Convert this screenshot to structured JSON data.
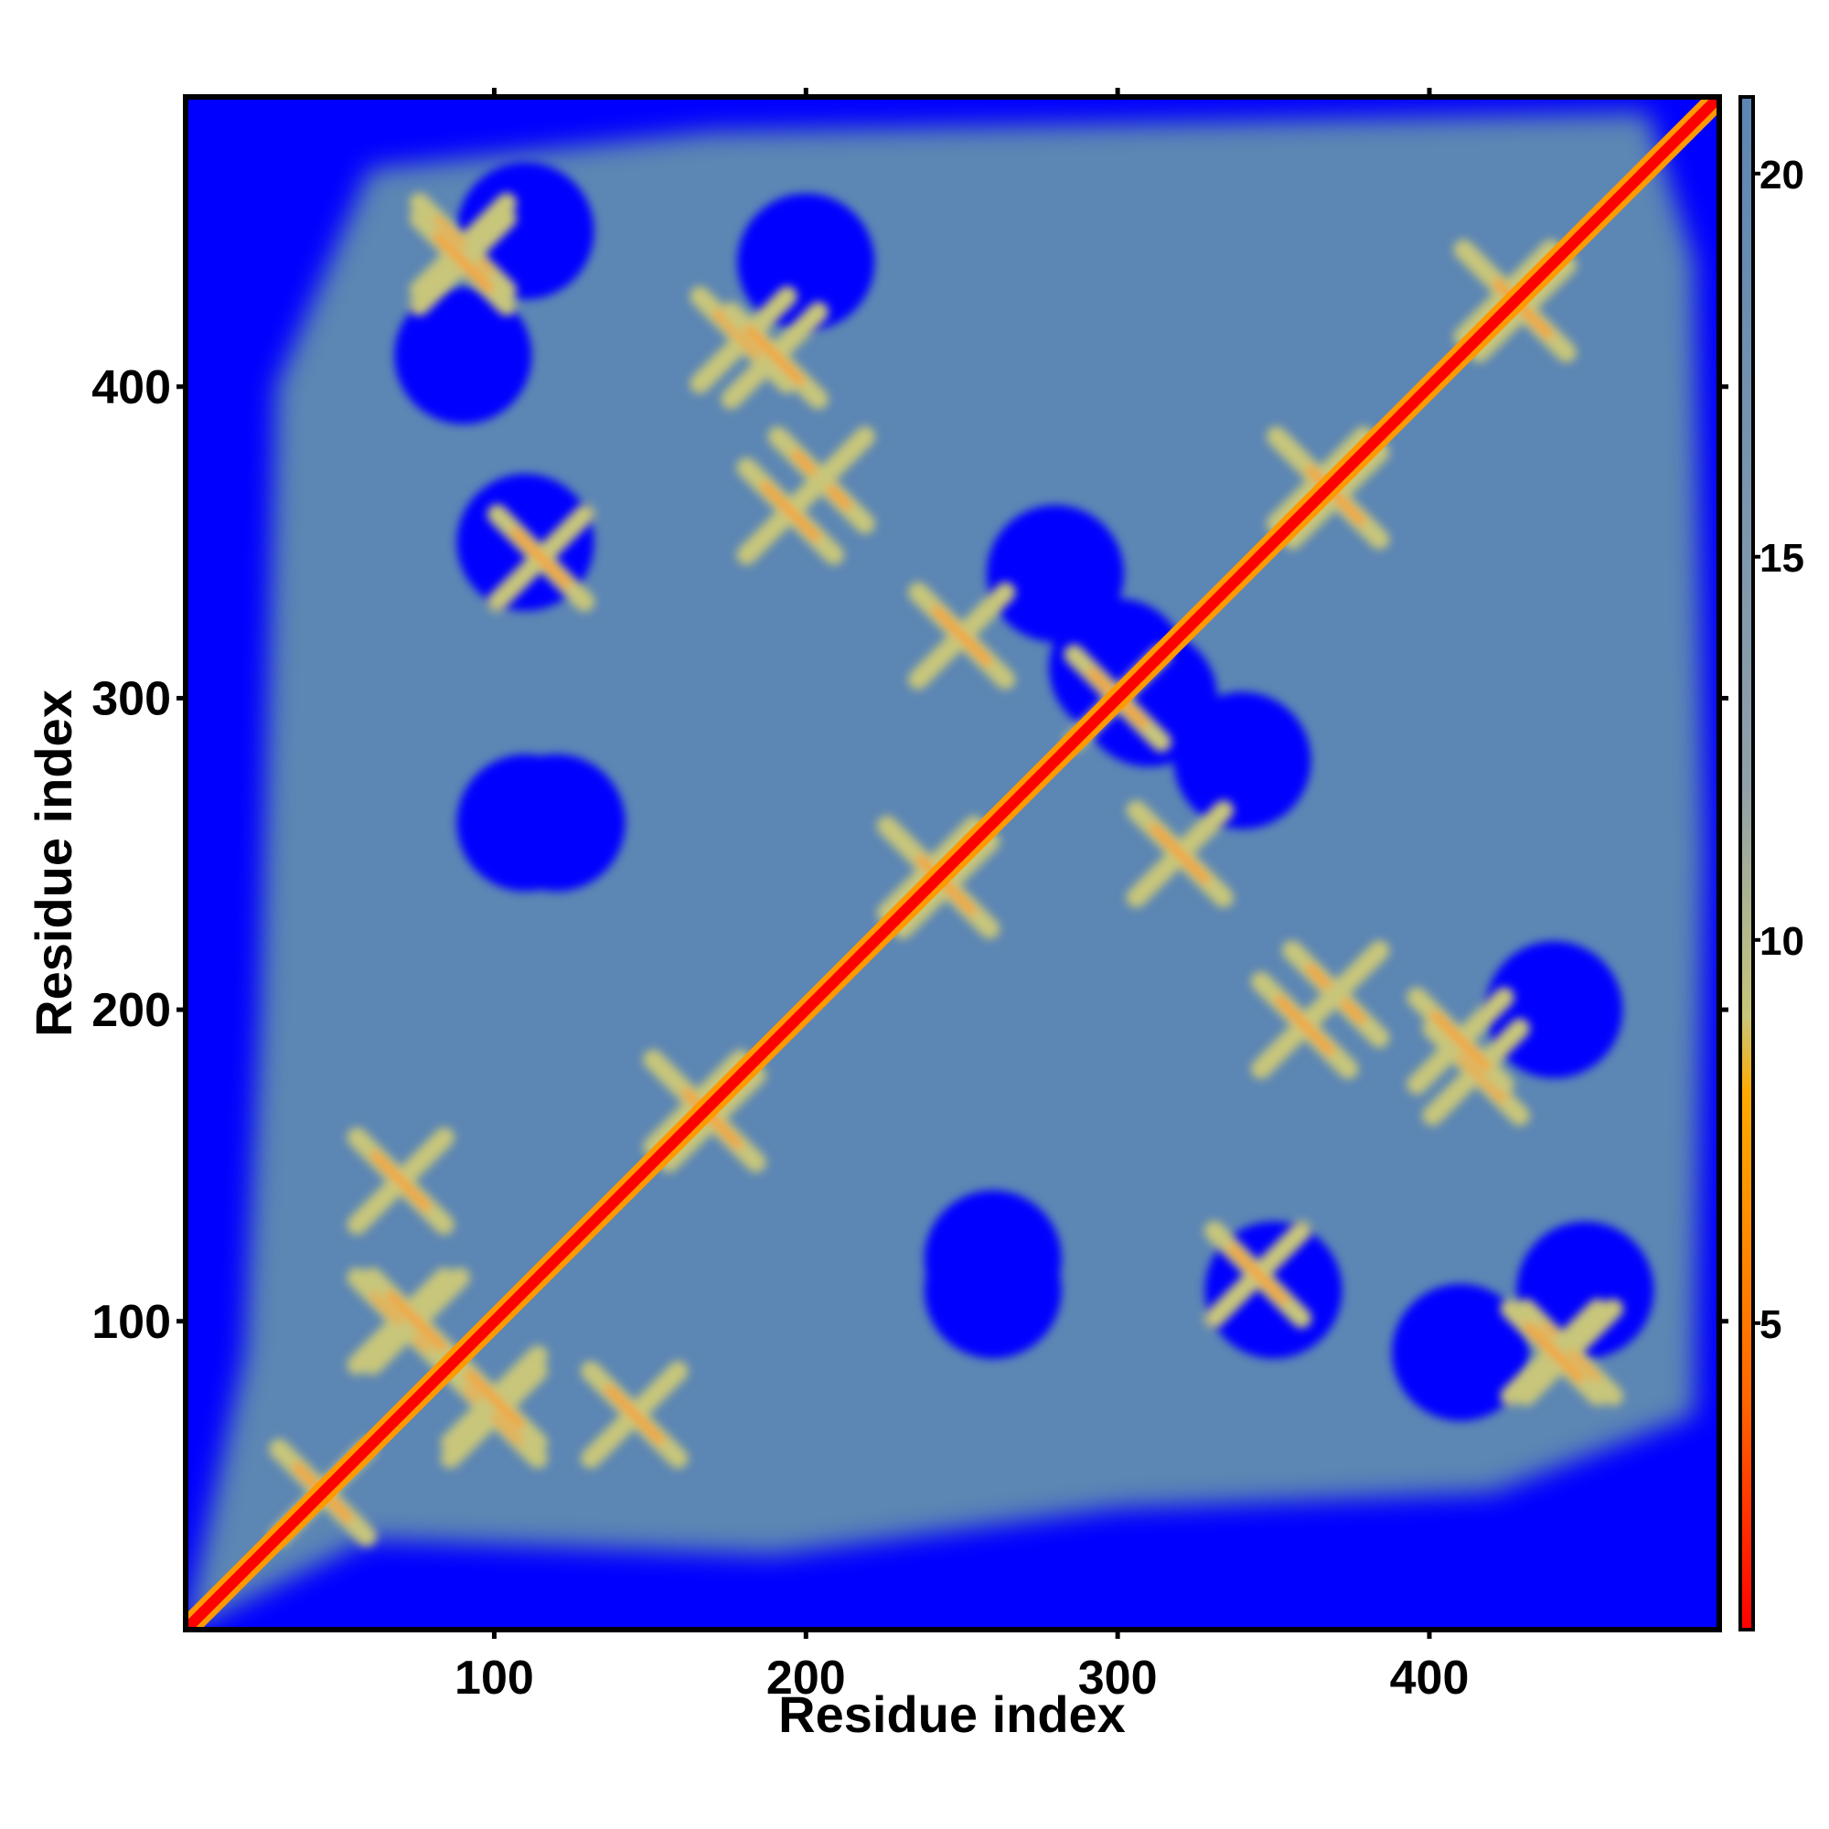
{
  "chart_data": {
    "type": "heatmap",
    "title": "",
    "xlabel": "Residue index",
    "ylabel": "Residue index",
    "xlim": [
      1,
      493
    ],
    "ylim": [
      1,
      493
    ],
    "xticks": [
      100,
      200,
      300,
      400
    ],
    "yticks": [
      100,
      200,
      300,
      400
    ],
    "xtick_labels": [
      "100",
      "200",
      "300",
      "400"
    ],
    "ytick_labels": [
      "100",
      "200",
      "300",
      "400"
    ],
    "grid": false,
    "symmetric": true,
    "colorbar": {
      "range": [
        1,
        21
      ],
      "ticks": [
        5,
        10,
        15,
        20
      ],
      "tick_labels": [
        "5",
        "10",
        "15",
        "20"
      ],
      "colors": [
        {
          "at": 1,
          "color": "#ff0000"
        },
        {
          "at": 4,
          "color": "#ff6600"
        },
        {
          "at": 8,
          "color": "#ffaa00"
        },
        {
          "at": 9,
          "color": "#c8c67a"
        },
        {
          "at": 12,
          "color": "#90a0a8"
        },
        {
          "at": 21,
          "color": "#5b86b4"
        }
      ],
      "above_range_color": "#0000ff"
    },
    "colors": {
      "background": "#0000ff",
      "medium": "#5b86b4",
      "near": "#c8c67a",
      "close": "#ff9900",
      "diagonal": "#ff0000"
    },
    "contact_features": {
      "diagonal": [
        [
          1,
          1
        ],
        [
          493,
          493
        ]
      ],
      "helix_crosses": [
        {
          "residues": [
            45,
            45
          ]
        },
        {
          "residues": [
            70,
            100
          ]
        },
        {
          "residues": [
            100,
            75
          ]
        },
        {
          "residues": [
            165,
            170
          ]
        },
        {
          "residues": [
            240,
            245
          ]
        },
        {
          "residues": [
            300,
            300
          ]
        },
        {
          "residues": [
            365,
            370
          ]
        },
        {
          "residues": [
            425,
            430
          ]
        },
        {
          "residues": [
            205,
            370
          ]
        },
        {
          "residues": [
            180,
            415
          ]
        },
        {
          "residues": [
            90,
            445
          ]
        },
        {
          "residues": [
            360,
            195
          ]
        },
        {
          "residues": [
            410,
            190
          ]
        },
        {
          "residues": [
            320,
            250
          ]
        },
        {
          "residues": [
            440,
            90
          ]
        },
        {
          "residues": [
            345,
            115
          ]
        },
        {
          "residues": [
            145,
            70
          ]
        }
      ],
      "clear_regions": [
        {
          "residues": [
            120,
            260
          ]
        },
        {
          "residues": [
            280,
            340
          ]
        },
        {
          "residues": [
            310,
            300
          ]
        },
        {
          "residues": [
            260,
            110
          ]
        },
        {
          "residues": [
            350,
            110
          ]
        },
        {
          "residues": [
            450,
            110
          ]
        },
        {
          "residues": [
            90,
            410
          ]
        },
        {
          "residues": [
            200,
            440
          ]
        }
      ]
    }
  }
}
